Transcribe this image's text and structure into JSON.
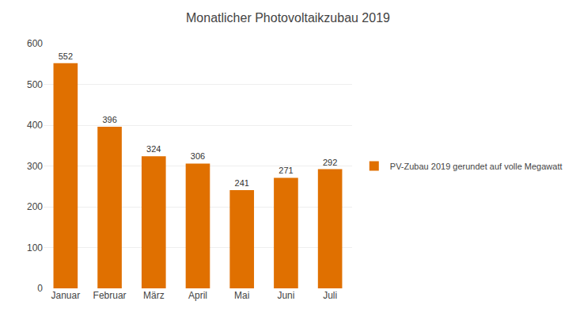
{
  "chart_data": {
    "type": "bar",
    "title": "Monatlicher Photovoltaikzubau 2019",
    "categories": [
      "Januar",
      "Februar",
      "März",
      "April",
      "Mai",
      "Juni",
      "Juli"
    ],
    "series": [
      {
        "name": "PV-Zubau 2019 gerundet auf volle Megawatt",
        "color": "#E07000",
        "values": [
          552,
          396,
          324,
          306,
          241,
          271,
          292
        ]
      }
    ],
    "ylim": [
      0,
      600
    ],
    "yticks": [
      0,
      100,
      200,
      300,
      400,
      500,
      600
    ],
    "grid": true,
    "legend": "right",
    "data_labels": true
  }
}
